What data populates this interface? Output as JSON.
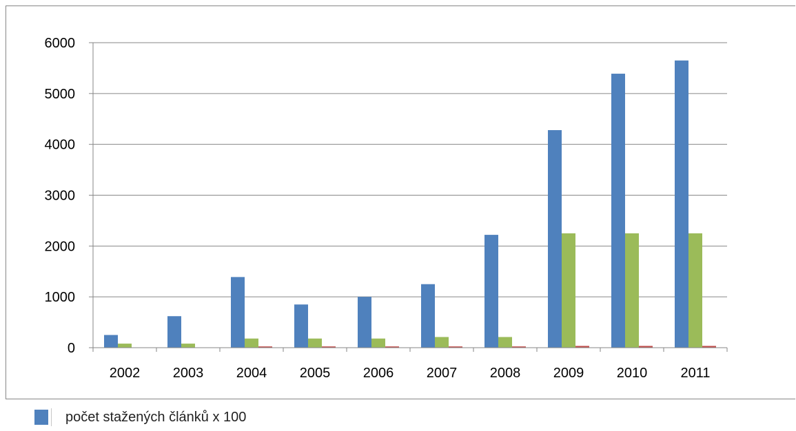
{
  "chart_data": {
    "type": "bar",
    "categories": [
      "2002",
      "2003",
      "2004",
      "2005",
      "2006",
      "2007",
      "2008",
      "2009",
      "2010",
      "2011"
    ],
    "series": [
      {
        "name": "počet stažených článků x 100",
        "color": "#4F81BD",
        "values": [
          250,
          620,
          1390,
          850,
          1000,
          1250,
          2220,
          4280,
          5390,
          5650
        ]
      },
      {
        "color": "#9BBB59",
        "values": [
          80,
          80,
          180,
          180,
          180,
          210,
          210,
          2250,
          2250,
          2250
        ]
      },
      {
        "color": "#C0504D",
        "values": [
          0,
          0,
          25,
          25,
          25,
          25,
          25,
          35,
          35,
          35
        ]
      }
    ],
    "ylim": [
      0,
      6000
    ],
    "yticks": [
      0,
      1000,
      2000,
      3000,
      4000,
      5000,
      6000
    ],
    "grid": true,
    "legend_placement": "bottom-left"
  },
  "legend": {
    "label": "počet stažených článků x 100",
    "color": "#4F81BD"
  }
}
